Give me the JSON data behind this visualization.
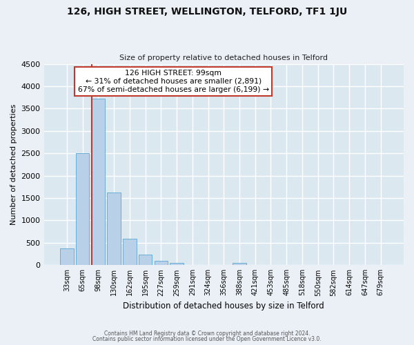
{
  "title": "126, HIGH STREET, WELLINGTON, TELFORD, TF1 1JU",
  "subtitle": "Size of property relative to detached houses in Telford",
  "xlabel": "Distribution of detached houses by size in Telford",
  "ylabel": "Number of detached properties",
  "footer_line1": "Contains HM Land Registry data © Crown copyright and database right 2024.",
  "footer_line2": "Contains public sector information licensed under the Open Government Licence v3.0.",
  "categories": [
    "33sqm",
    "65sqm",
    "98sqm",
    "130sqm",
    "162sqm",
    "195sqm",
    "227sqm",
    "259sqm",
    "291sqm",
    "324sqm",
    "356sqm",
    "388sqm",
    "421sqm",
    "453sqm",
    "485sqm",
    "518sqm",
    "550sqm",
    "582sqm",
    "614sqm",
    "647sqm",
    "679sqm"
  ],
  "values": [
    380,
    2500,
    3720,
    1620,
    590,
    235,
    95,
    55,
    0,
    0,
    0,
    50,
    0,
    0,
    0,
    0,
    0,
    0,
    0,
    0,
    0
  ],
  "bar_color": "#b8d0e8",
  "bar_edge_color": "#6aaed6",
  "property_line_color": "#c0392b",
  "annotation_title": "126 HIGH STREET: 99sqm",
  "annotation_line1": "← 31% of detached houses are smaller (2,891)",
  "annotation_line2": "67% of semi-detached houses are larger (6,199) →",
  "annotation_box_color": "#ffffff",
  "annotation_box_edge_color": "#c0392b",
  "ylim": [
    0,
    4500
  ],
  "yticks": [
    0,
    500,
    1000,
    1500,
    2000,
    2500,
    3000,
    3500,
    4000,
    4500
  ],
  "bg_color": "#eaf0f6",
  "plot_bg_color": "#dce8f0",
  "grid_color": "#ffffff",
  "title_fontsize": 10,
  "subtitle_fontsize": 8
}
